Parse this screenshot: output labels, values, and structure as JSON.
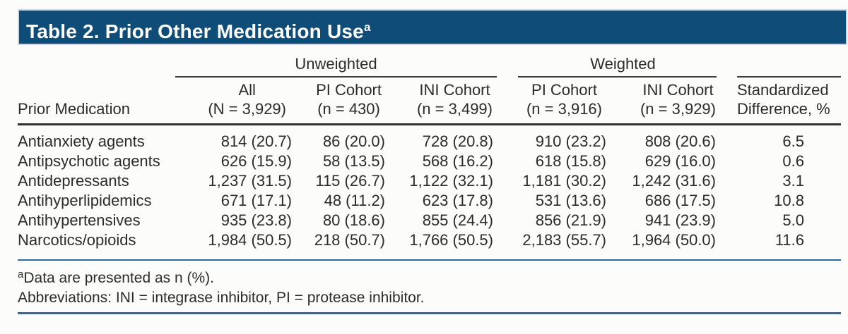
{
  "title": {
    "text": "Table 2. Prior Other Medication Use",
    "superscript": "a"
  },
  "table": {
    "groups": {
      "unweighted": "Unweighted",
      "weighted": "Weighted"
    },
    "columns": [
      {
        "line1": "",
        "line2": "Prior Medication"
      },
      {
        "line1": "All",
        "line2": "(N = 3,929)"
      },
      {
        "line1": "PI Cohort",
        "line2": "(n = 430)"
      },
      {
        "line1": "INI Cohort",
        "line2": "(n = 3,499)"
      },
      {
        "line1": "PI Cohort",
        "line2": "(n = 3,916)"
      },
      {
        "line1": "INI Cohort",
        "line2": "(n = 3,929)"
      },
      {
        "line1": "Standardized",
        "line2": "Difference, %"
      }
    ],
    "rows": [
      {
        "medication": "Antianxiety agents",
        "cells": [
          "814 (20.7)",
          "86 (20.0)",
          "728 (20.8)",
          "910 (23.2)",
          "808 (20.6)",
          "6.5"
        ]
      },
      {
        "medication": "Antipsychotic agents",
        "cells": [
          "626 (15.9)",
          "58 (13.5)",
          "568 (16.2)",
          "618 (15.8)",
          "629 (16.0)",
          "0.6"
        ]
      },
      {
        "medication": "Antidepressants",
        "cells": [
          "1,237 (31.5)",
          "115 (26.7)",
          "1,122 (32.1)",
          "1,181 (30.2)",
          "1,242 (31.6)",
          "3.1"
        ]
      },
      {
        "medication": "Antihyperlipidemics",
        "cells": [
          "671 (17.1)",
          "48 (11.2)",
          "623 (17.8)",
          "531 (13.6)",
          "686 (17.5)",
          "10.8"
        ]
      },
      {
        "medication": "Antihypertensives",
        "cells": [
          "935 (23.8)",
          "80 (18.6)",
          "855 (24.4)",
          "856 (21.9)",
          "941 (23.9)",
          "5.0"
        ]
      },
      {
        "medication": "Narcotics/opioids",
        "cells": [
          "1,984 (50.5)",
          "218 (50.7)",
          "1,766 (50.5)",
          "2,183 (55.7)",
          "1,964 (50.0)",
          "11.6"
        ]
      }
    ]
  },
  "footnotes": [
    {
      "sup": "a",
      "text": "Data are presented as n (%)."
    },
    {
      "sup": "",
      "text": "Abbreviations: INI = integrase inhibitor, PI = protease inhibitor."
    }
  ],
  "colors": {
    "title_bar": "#0f4c78",
    "title_bar_edge": "#ccd8e4",
    "rule_dark": "#303030",
    "rule_blue": "#31689e",
    "text": "#2b2b2b"
  }
}
